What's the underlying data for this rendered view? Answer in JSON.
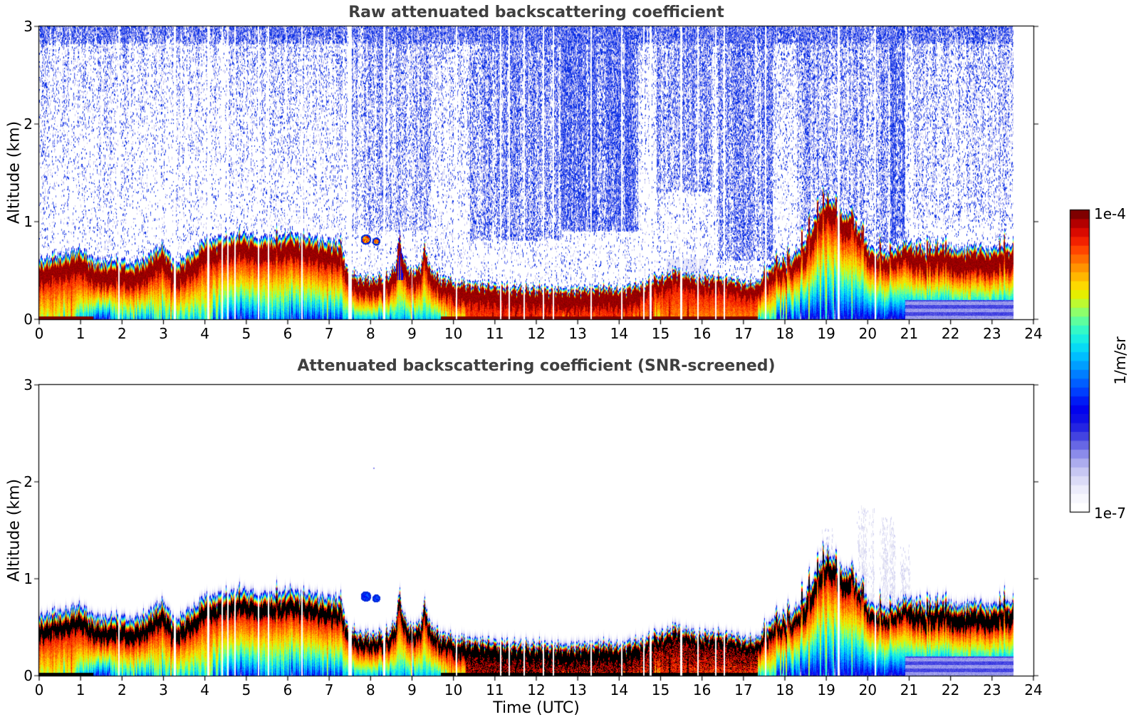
{
  "figure": {
    "titles": [
      "Raw attenuated backscattering coefficient",
      "Attenuated backscattering coefficient (SNR-screened)"
    ],
    "xlabel": "Time (UTC)",
    "ylabel": "Altitude (km)",
    "title_color": "#3f3f3f",
    "text_color": "#000000",
    "colorbar": {
      "max_label": "1e-4",
      "min_label": "1e-7",
      "units_label": "1/m/sr"
    }
  },
  "chart_data": [
    {
      "type": "heatmap",
      "title": "Raw attenuated backscattering coefficient",
      "xlabel": "",
      "ylabel": "Altitude (km)",
      "x_range": [
        0,
        24
      ],
      "y_range": [
        0,
        3
      ],
      "x_ticks": [
        0,
        1,
        2,
        3,
        4,
        5,
        6,
        7,
        8,
        9,
        10,
        11,
        12,
        13,
        14,
        15,
        16,
        17,
        18,
        19,
        20,
        21,
        22,
        23,
        24
      ],
      "y_ticks": [
        0,
        1,
        2,
        3
      ],
      "grid": false,
      "data_end_hour": 23.5,
      "colorbar": {
        "scale": "log",
        "min": "1e-7",
        "max": "1e-4",
        "units": "1/m/sr",
        "position": "right"
      },
      "colormap_stops": [
        [
          0.0,
          "#ffffff"
        ],
        [
          0.05,
          "#f2f2fd"
        ],
        [
          0.09,
          "#dcdcf8"
        ],
        [
          0.13,
          "#c2c2f2"
        ],
        [
          0.17,
          "#9a9aec"
        ],
        [
          0.21,
          "#6a6ae6"
        ],
        [
          0.25,
          "#3a3ae0"
        ],
        [
          0.29,
          "#1414e4"
        ],
        [
          0.34,
          "#0000f0"
        ],
        [
          0.4,
          "#0045ff"
        ],
        [
          0.46,
          "#0084ff"
        ],
        [
          0.52,
          "#00c4ff"
        ],
        [
          0.56,
          "#0ce8f0"
        ],
        [
          0.6,
          "#2cf8d0"
        ],
        [
          0.64,
          "#64ff9a"
        ],
        [
          0.68,
          "#a4ff54"
        ],
        [
          0.72,
          "#e0f400"
        ],
        [
          0.76,
          "#ffd800"
        ],
        [
          0.8,
          "#ffaa00"
        ],
        [
          0.84,
          "#ff7800"
        ],
        [
          0.88,
          "#ff4400"
        ],
        [
          0.92,
          "#ee1400"
        ],
        [
          0.96,
          "#c40000"
        ],
        [
          1.0,
          "#7f0000"
        ]
      ],
      "boundary_layer_top_km": [
        [
          0,
          0.6
        ],
        [
          0.3,
          0.66
        ],
        [
          0.7,
          0.68
        ],
        [
          1.0,
          0.72
        ],
        [
          1.3,
          0.62
        ],
        [
          1.6,
          0.6
        ],
        [
          1.9,
          0.63
        ],
        [
          2.2,
          0.58
        ],
        [
          2.5,
          0.62
        ],
        [
          2.8,
          0.72
        ],
        [
          3.0,
          0.78
        ],
        [
          3.2,
          0.62
        ],
        [
          3.4,
          0.6
        ],
        [
          3.6,
          0.68
        ],
        [
          3.8,
          0.72
        ],
        [
          4.0,
          0.85
        ],
        [
          4.2,
          0.82
        ],
        [
          4.5,
          0.86
        ],
        [
          4.8,
          0.88
        ],
        [
          5.2,
          0.86
        ],
        [
          5.6,
          0.84
        ],
        [
          6.0,
          0.88
        ],
        [
          6.4,
          0.86
        ],
        [
          6.8,
          0.82
        ],
        [
          7.1,
          0.8
        ],
        [
          7.3,
          0.78
        ],
        [
          7.45,
          0.5
        ],
        [
          7.7,
          0.45
        ],
        [
          8.0,
          0.43
        ],
        [
          8.4,
          0.46
        ],
        [
          8.6,
          0.55
        ],
        [
          8.7,
          0.88
        ],
        [
          8.8,
          0.62
        ],
        [
          9.0,
          0.5
        ],
        [
          9.2,
          0.55
        ],
        [
          9.3,
          0.78
        ],
        [
          9.45,
          0.52
        ],
        [
          9.7,
          0.44
        ],
        [
          10.0,
          0.4
        ],
        [
          10.5,
          0.37
        ],
        [
          11.0,
          0.36
        ],
        [
          11.5,
          0.34
        ],
        [
          12.0,
          0.33
        ],
        [
          12.5,
          0.32
        ],
        [
          13.0,
          0.32
        ],
        [
          13.5,
          0.34
        ],
        [
          14.0,
          0.33
        ],
        [
          14.5,
          0.37
        ],
        [
          15.0,
          0.45
        ],
        [
          15.4,
          0.52
        ],
        [
          15.7,
          0.46
        ],
        [
          16.0,
          0.43
        ],
        [
          16.3,
          0.46
        ],
        [
          16.6,
          0.44
        ],
        [
          17.0,
          0.4
        ],
        [
          17.3,
          0.38
        ],
        [
          17.55,
          0.5
        ],
        [
          17.8,
          0.62
        ],
        [
          18.0,
          0.58
        ],
        [
          18.2,
          0.66
        ],
        [
          18.45,
          0.8
        ],
        [
          18.7,
          1.02
        ],
        [
          18.9,
          1.18
        ],
        [
          19.05,
          1.27
        ],
        [
          19.2,
          1.2
        ],
        [
          19.4,
          1.12
        ],
        [
          19.6,
          1.02
        ],
        [
          19.8,
          0.92
        ],
        [
          20.0,
          0.78
        ],
        [
          20.3,
          0.68
        ],
        [
          20.6,
          0.72
        ],
        [
          20.9,
          0.8
        ],
        [
          21.1,
          0.78
        ],
        [
          21.4,
          0.72
        ],
        [
          21.7,
          0.77
        ],
        [
          22.0,
          0.74
        ],
        [
          22.3,
          0.71
        ],
        [
          22.6,
          0.76
        ],
        [
          22.9,
          0.72
        ],
        [
          23.2,
          0.74
        ],
        [
          23.5,
          0.78
        ]
      ],
      "core_thickness_km": [
        [
          0,
          7.3,
          0.17
        ],
        [
          7.3,
          10,
          0.14
        ],
        [
          10,
          14.5,
          0.17
        ],
        [
          14.5,
          17.5,
          0.12
        ],
        [
          17.5,
          18.4,
          0.13
        ],
        [
          18.4,
          19.6,
          0.19
        ],
        [
          19.6,
          21,
          0.13
        ],
        [
          21,
          23.6,
          0.19
        ]
      ],
      "surface_value_regions": [
        [
          0,
          1.3,
          0.68
        ],
        [
          1.3,
          2.2,
          0.52
        ],
        [
          2.2,
          4.4,
          0.56
        ],
        [
          4.4,
          7.35,
          0.46
        ],
        [
          7.35,
          9.7,
          0.52
        ],
        [
          9.7,
          10.3,
          0.7
        ],
        [
          10.3,
          14.5,
          0.88
        ],
        [
          14.5,
          17.35,
          0.82
        ],
        [
          17.35,
          17.8,
          0.58
        ],
        [
          17.8,
          20.9,
          0.3
        ],
        [
          20.9,
          23.6,
          0.28
        ]
      ],
      "streak_scale_regions": [
        [
          0,
          1.3,
          0.1
        ],
        [
          1.3,
          7.35,
          0.14
        ],
        [
          7.35,
          10.3,
          0.08
        ],
        [
          10.3,
          17.35,
          0.04
        ],
        [
          17.35,
          21,
          0.1
        ],
        [
          21,
          23.6,
          0.06
        ]
      ],
      "spike_regions": [
        [
          3.9,
          7.3,
          0.12,
          0.07
        ],
        [
          14.8,
          16.25,
          0.15,
          0.06
        ],
        [
          17.5,
          21,
          0.3,
          0.22
        ],
        [
          21,
          23.6,
          0.22,
          0.15
        ]
      ],
      "blue_patches": [
        [
          0.9,
          1.7,
          0.5,
          0.18
        ],
        [
          2.3,
          2.7,
          0.4,
          0.08
        ],
        [
          4.55,
          5.35,
          0.45,
          0.1
        ],
        [
          6.1,
          7.3,
          0.5,
          0.09
        ]
      ],
      "no_data_gaps_hours": [
        [
          1.93,
          0.018
        ],
        [
          3.28,
          0.028
        ],
        [
          4.08,
          0.022
        ],
        [
          4.42,
          0.018
        ],
        [
          4.56,
          0.018
        ],
        [
          4.73,
          0.018
        ],
        [
          5.29,
          0.018
        ],
        [
          5.53,
          0.018
        ],
        [
          6.34,
          0.018
        ],
        [
          7.5,
          0.045
        ],
        [
          8.33,
          0.018
        ],
        [
          9.0,
          0.014
        ],
        [
          10.07,
          0.018
        ],
        [
          11.14,
          0.018
        ],
        [
          11.35,
          0.018
        ],
        [
          11.7,
          0.018
        ],
        [
          12.17,
          0.018
        ],
        [
          12.42,
          0.018
        ],
        [
          13.33,
          0.018
        ],
        [
          14.06,
          0.018
        ],
        [
          14.6,
          0.018
        ],
        [
          14.76,
          0.018
        ],
        [
          15.5,
          0.028
        ],
        [
          15.9,
          0.018
        ],
        [
          16.33,
          0.018
        ],
        [
          16.54,
          0.018
        ],
        [
          17.54,
          0.018
        ],
        [
          19.3,
          0.022
        ],
        [
          20.18,
          0.018
        ]
      ],
      "noise_bands": [
        [
          0,
          23.5,
          2.82,
          3.0,
          0.55
        ],
        [
          7.5,
          9.45,
          0.9,
          3.0,
          0.3
        ],
        [
          10.4,
          12.6,
          0.8,
          3.0,
          0.45
        ],
        [
          12.6,
          14.45,
          0.9,
          3.0,
          0.75
        ],
        [
          14.9,
          16.25,
          1.3,
          3.0,
          0.4
        ],
        [
          16.4,
          17.7,
          0.6,
          3.0,
          0.45
        ],
        [
          18.3,
          19.75,
          0.9,
          3.0,
          0.35
        ],
        [
          19.8,
          20.5,
          0.7,
          3.0,
          0.4
        ],
        [
          20.55,
          20.9,
          0.75,
          3.0,
          0.95
        ],
        [
          21.0,
          23.5,
          1.0,
          3.0,
          0.12
        ]
      ],
      "haze_region": [
        15.15,
        16.1,
        0.62
      ],
      "blobs": [
        [
          7.88,
          0.82,
          0.05
        ],
        [
          8.13,
          0.8,
          0.038
        ]
      ],
      "screened": false
    },
    {
      "type": "heatmap",
      "title": "Attenuated backscattering coefficient (SNR-screened)",
      "xlabel": "Time (UTC)",
      "ylabel": "Altitude (km)",
      "x_range": [
        0,
        24
      ],
      "y_range": [
        0,
        3
      ],
      "x_ticks": [
        0,
        1,
        2,
        3,
        4,
        5,
        6,
        7,
        8,
        9,
        10,
        11,
        12,
        13,
        14,
        15,
        16,
        17,
        18,
        19,
        20,
        21,
        22,
        23,
        24
      ],
      "y_ticks": [
        0,
        1,
        2,
        3
      ],
      "grid": false,
      "data_end_hour": 23.5,
      "scene": "same_as_panel_0",
      "over_color": "#000000",
      "under_color": "#ffffff",
      "lavender_streak_bands": [
        [
          18.85,
          19.15,
          0.95,
          1.5,
          0.5
        ],
        [
          19.75,
          20.15,
          0.55,
          1.72,
          0.65
        ],
        [
          20.3,
          20.65,
          0.55,
          1.62,
          0.6
        ],
        [
          20.8,
          21.0,
          0.8,
          1.35,
          0.35
        ]
      ],
      "isolated_dot": [
        8.07,
        2.15
      ],
      "blobs": [
        [
          7.88,
          0.82,
          0.05
        ],
        [
          8.13,
          0.8,
          0.038
        ]
      ],
      "screened": true
    }
  ]
}
